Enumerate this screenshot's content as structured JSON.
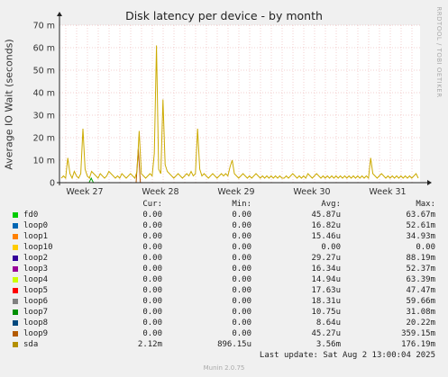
{
  "chart_data": {
    "type": "line",
    "title": "Disk latency per device - by month",
    "ylabel": "Average IO Wait (seconds)",
    "ylim": [
      0,
      70
    ],
    "yticks": [
      0,
      10,
      20,
      30,
      40,
      50,
      60,
      70
    ],
    "ytick_labels": [
      "0",
      "10 m",
      "20 m",
      "30 m",
      "40 m",
      "50 m",
      "60 m",
      "70 m"
    ],
    "xtick_labels": [
      "Week 27",
      "Week 28",
      "Week 29",
      "Week 30",
      "Week 31"
    ],
    "grid": true,
    "series": [
      {
        "name": "sda",
        "color": "#ccaa00",
        "values": [
          2,
          3,
          2,
          11,
          4,
          2,
          5,
          3,
          2,
          4,
          24,
          6,
          3,
          2,
          5,
          4,
          3,
          2,
          4,
          3,
          2,
          3,
          5,
          4,
          3,
          2,
          3,
          2,
          4,
          3,
          2,
          3,
          4,
          3,
          2,
          5,
          23,
          4,
          3,
          2,
          3,
          4,
          3,
          13,
          61,
          6,
          4,
          37,
          8,
          5,
          4,
          3,
          2,
          3,
          4,
          3,
          2,
          3,
          4,
          3,
          5,
          3,
          4,
          24,
          6,
          3,
          4,
          3,
          2,
          3,
          4,
          3,
          2,
          3,
          4,
          3,
          4,
          3,
          7,
          10,
          4,
          3,
          2,
          3,
          4,
          3,
          2,
          3,
          2,
          3,
          4,
          3,
          2,
          3,
          2,
          3,
          2,
          3,
          2,
          3,
          2,
          3,
          2,
          2,
          3,
          2,
          3,
          4,
          3,
          2,
          3,
          2,
          3,
          2,
          4,
          3,
          2,
          3,
          4,
          3,
          2,
          3,
          2,
          3,
          2,
          3,
          2,
          3,
          2,
          3,
          2,
          3,
          2,
          3,
          2,
          3,
          2,
          3,
          2,
          3,
          2,
          3,
          2,
          11,
          4,
          3,
          2,
          3,
          4,
          3,
          2,
          3,
          2,
          3,
          2,
          3,
          2,
          3,
          2,
          3,
          2,
          3,
          2,
          3,
          4,
          2
        ]
      },
      {
        "name": "loop9",
        "color": "#b35a00",
        "values": [
          0,
          0,
          0,
          0,
          0,
          0,
          0,
          0,
          0,
          0,
          0,
          0,
          0,
          0,
          0,
          0,
          0,
          0,
          0,
          0,
          0,
          0,
          0,
          0,
          0,
          0,
          0,
          0,
          0,
          0,
          0,
          0,
          0,
          0,
          0,
          0,
          15,
          0,
          0,
          0,
          0,
          0,
          0,
          0,
          0,
          0,
          0,
          0,
          0,
          0,
          0,
          0,
          0,
          0,
          0,
          0,
          0,
          0,
          0,
          0,
          0,
          0,
          0,
          0,
          0,
          0,
          0,
          0,
          0,
          0,
          0,
          0,
          0,
          0,
          0,
          0,
          0,
          0,
          0,
          0,
          0,
          0,
          0,
          0,
          0,
          0,
          0,
          0,
          0,
          0,
          0,
          0,
          0,
          0,
          0,
          0,
          0,
          0,
          0,
          0,
          0,
          0,
          0,
          0,
          0,
          0,
          0,
          0,
          0,
          0,
          0,
          0,
          0,
          0,
          0,
          0,
          0,
          0,
          0,
          0,
          0,
          0,
          0,
          0,
          0,
          0,
          0,
          0,
          0,
          0,
          0,
          0,
          0,
          0,
          0,
          0,
          0,
          0,
          0,
          0,
          0,
          0,
          0,
          0,
          0,
          0,
          0,
          0,
          0,
          0,
          0,
          0,
          0,
          0,
          0,
          0,
          0,
          0,
          0,
          0,
          0,
          0,
          0,
          0,
          0,
          0,
          0,
          0
        ]
      },
      {
        "name": "loop7",
        "color": "#00a000",
        "values": [
          0,
          0,
          0,
          0,
          0,
          0,
          0,
          0,
          0,
          0,
          0,
          0,
          0,
          0,
          2,
          0,
          0,
          0,
          0,
          0,
          0,
          0,
          0,
          0,
          0,
          0,
          0,
          0,
          0,
          0,
          0,
          0,
          0,
          0,
          0,
          0,
          0,
          0,
          0,
          0,
          0,
          0,
          0,
          0,
          0,
          0,
          0,
          0,
          0,
          0,
          0,
          0,
          0,
          0,
          0,
          0,
          0,
          0,
          0,
          0,
          0,
          0,
          0,
          0,
          0,
          0,
          0,
          0,
          0,
          0,
          0,
          0,
          0,
          0,
          0,
          0,
          0,
          0,
          0,
          0,
          0,
          0,
          0,
          0,
          0,
          0,
          0,
          0,
          0,
          0,
          0,
          0,
          0,
          0,
          0,
          0,
          0,
          0,
          0,
          0,
          0,
          0,
          0,
          0,
          0,
          0,
          0,
          0,
          0,
          0,
          0,
          0,
          0,
          0,
          0,
          0,
          0,
          0,
          0,
          0,
          0,
          0,
          0,
          0,
          0,
          0,
          0,
          0,
          0,
          0,
          0,
          0,
          0,
          0,
          0,
          0,
          0,
          0,
          0,
          0,
          0,
          0,
          0,
          0,
          0,
          0,
          0,
          0,
          0,
          0,
          0,
          0,
          0,
          0,
          0,
          0,
          0,
          0,
          0,
          0,
          0,
          0,
          0,
          0,
          0,
          0,
          0,
          0
        ]
      }
    ]
  },
  "side_label": "RRDTOOL / TOBI OETIKER",
  "legend": {
    "headers": {
      "cur": "Cur:",
      "min": "Min:",
      "avg": "Avg:",
      "max": "Max:"
    },
    "rows": [
      {
        "name": "fd0",
        "color": "#00cc00",
        "cur": "0.00",
        "min": "0.00",
        "avg": "45.87u",
        "max": "63.67m"
      },
      {
        "name": "loop0",
        "color": "#0066b3",
        "cur": "0.00",
        "min": "0.00",
        "avg": "16.82u",
        "max": "52.61m"
      },
      {
        "name": "loop1",
        "color": "#ff8000",
        "cur": "0.00",
        "min": "0.00",
        "avg": "15.46u",
        "max": "34.93m"
      },
      {
        "name": "loop10",
        "color": "#ffcc00",
        "cur": "0.00",
        "min": "0.00",
        "avg": "0.00",
        "max": "0.00"
      },
      {
        "name": "loop2",
        "color": "#330099",
        "cur": "0.00",
        "min": "0.00",
        "avg": "29.27u",
        "max": "88.19m"
      },
      {
        "name": "loop3",
        "color": "#990099",
        "cur": "0.00",
        "min": "0.00",
        "avg": "16.34u",
        "max": "52.37m"
      },
      {
        "name": "loop4",
        "color": "#ccff00",
        "cur": "0.00",
        "min": "0.00",
        "avg": "14.94u",
        "max": "63.39m"
      },
      {
        "name": "loop5",
        "color": "#ff0000",
        "cur": "0.00",
        "min": "0.00",
        "avg": "17.63u",
        "max": "47.47m"
      },
      {
        "name": "loop6",
        "color": "#808080",
        "cur": "0.00",
        "min": "0.00",
        "avg": "18.31u",
        "max": "59.66m"
      },
      {
        "name": "loop7",
        "color": "#008f00",
        "cur": "0.00",
        "min": "0.00",
        "avg": "10.75u",
        "max": "31.08m"
      },
      {
        "name": "loop8",
        "color": "#00487d",
        "cur": "0.00",
        "min": "0.00",
        "avg": "8.64u",
        "max": "20.22m"
      },
      {
        "name": "loop9",
        "color": "#b35a00",
        "cur": "0.00",
        "min": "0.00",
        "avg": "45.27u",
        "max": "359.15m"
      },
      {
        "name": "sda",
        "color": "#b38f00",
        "cur": "2.12m",
        "min": "896.15u",
        "avg": "3.56m",
        "max": "176.19m"
      }
    ]
  },
  "last_update": "Last update: Sat Aug  2 13:00:04 2025",
  "version": "Munin 2.0.75"
}
